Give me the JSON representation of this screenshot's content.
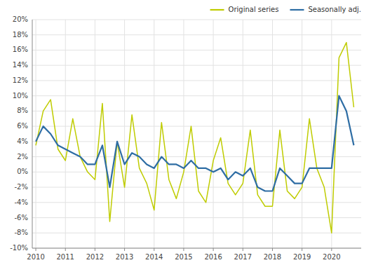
{
  "chart_data": {
    "type": "line",
    "x": [
      2010.0,
      2010.25,
      2010.5,
      2010.75,
      2011.0,
      2011.25,
      2011.5,
      2011.75,
      2012.0,
      2012.25,
      2012.5,
      2012.75,
      2013.0,
      2013.25,
      2013.5,
      2013.75,
      2014.0,
      2014.25,
      2014.5,
      2014.75,
      2015.0,
      2015.25,
      2015.5,
      2015.75,
      2016.0,
      2016.25,
      2016.5,
      2016.75,
      2017.0,
      2017.25,
      2017.5,
      2017.75,
      2018.0,
      2018.25,
      2018.5,
      2018.75,
      2019.0,
      2019.25,
      2019.5,
      2019.75,
      2020.0,
      2020.25,
      2020.5,
      2020.75
    ],
    "series": [
      {
        "name": "Original series",
        "color": "#bfcc00",
        "values": [
          3.5,
          8.0,
          9.5,
          3.0,
          1.5,
          7.0,
          2.0,
          0.0,
          -1.0,
          9.0,
          -6.5,
          4.0,
          -2.0,
          7.5,
          0.5,
          -1.5,
          -5.0,
          6.5,
          -1.0,
          -3.5,
          0.0,
          6.0,
          -2.5,
          -4.0,
          1.5,
          4.5,
          -1.5,
          -3.0,
          -1.5,
          5.5,
          -3.0,
          -4.5,
          -4.5,
          5.5,
          -2.5,
          -3.5,
          -2.0,
          7.0,
          0.5,
          -2.0,
          -8.0,
          15.0,
          17.0,
          8.5
        ]
      },
      {
        "name": "Seasonally adj.",
        "color": "#2e6da4",
        "values": [
          4.0,
          6.0,
          5.0,
          3.5,
          3.0,
          2.5,
          2.0,
          1.0,
          1.0,
          3.5,
          -2.0,
          4.0,
          1.0,
          2.5,
          2.0,
          1.0,
          0.5,
          2.0,
          1.0,
          1.0,
          0.5,
          1.5,
          0.5,
          0.5,
          0.0,
          0.5,
          -1.0,
          0.0,
          -0.5,
          0.5,
          -2.0,
          -2.5,
          -2.5,
          0.5,
          -0.5,
          -1.5,
          -1.5,
          0.5,
          0.5,
          0.5,
          0.5,
          10.0,
          8.0,
          3.5
        ]
      }
    ],
    "xlim": [
      2009.88,
      2021.0
    ],
    "xticks": [
      2010,
      2011,
      2012,
      2013,
      2014,
      2015,
      2016,
      2017,
      2018,
      2019,
      2020
    ],
    "ylim": [
      -10,
      20
    ],
    "yticks": [
      {
        "value": -10,
        "label": "-10%"
      },
      {
        "value": -8,
        "label": "-8%"
      },
      {
        "value": -6,
        "label": "-6%"
      },
      {
        "value": -4,
        "label": "-4%"
      },
      {
        "value": -2,
        "label": "-2%"
      },
      {
        "value": 0,
        "label": "0%"
      },
      {
        "value": 2,
        "label": "2%"
      },
      {
        "value": 4,
        "label": "4%"
      },
      {
        "value": 6,
        "label": "6%"
      },
      {
        "value": 8,
        "label": "8%"
      },
      {
        "value": 10,
        "label": "10%"
      },
      {
        "value": 12,
        "label": "12%"
      },
      {
        "value": 14,
        "label": "14%"
      },
      {
        "value": 16,
        "label": "16%"
      },
      {
        "value": 18,
        "label": "18%"
      },
      {
        "value": 20,
        "label": "20%"
      }
    ],
    "grid": true,
    "legend": "upper right"
  }
}
